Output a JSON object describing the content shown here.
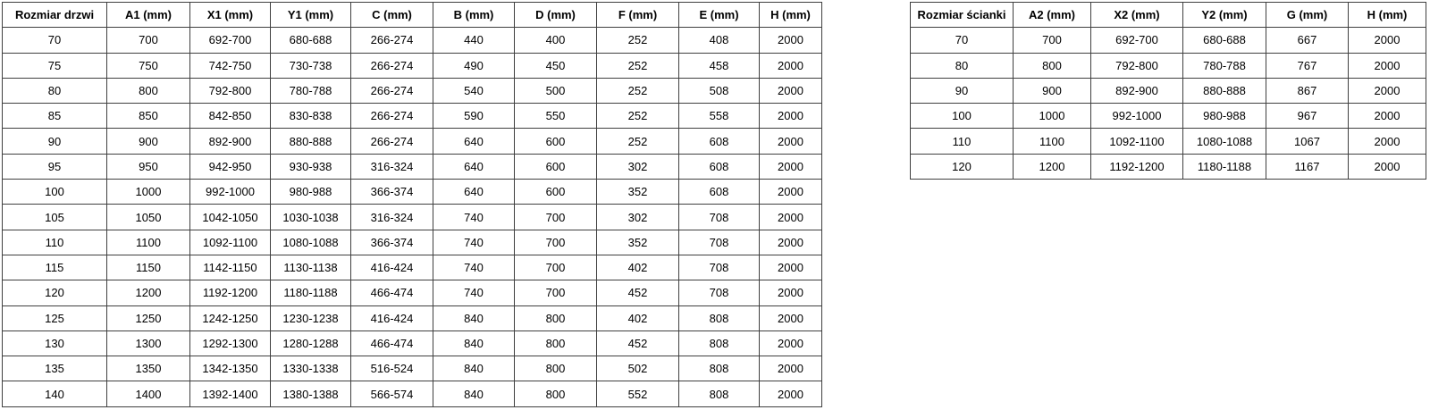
{
  "page": {
    "background": "#ffffff",
    "text_color": "#000000",
    "border_color": "#3f3f3f"
  },
  "door_table": {
    "headers": [
      "Rozmiar drzwi",
      "A1 (mm)",
      "X1 (mm)",
      "Y1 (mm)",
      "C (mm)",
      "B (mm)",
      "D (mm)",
      "F (mm)",
      "E (mm)",
      "H (mm)"
    ],
    "rows": [
      [
        "70",
        "700",
        "692-700",
        "680-688",
        "266-274",
        "440",
        "400",
        "252",
        "408",
        "2000"
      ],
      [
        "75",
        "750",
        "742-750",
        "730-738",
        "266-274",
        "490",
        "450",
        "252",
        "458",
        "2000"
      ],
      [
        "80",
        "800",
        "792-800",
        "780-788",
        "266-274",
        "540",
        "500",
        "252",
        "508",
        "2000"
      ],
      [
        "85",
        "850",
        "842-850",
        "830-838",
        "266-274",
        "590",
        "550",
        "252",
        "558",
        "2000"
      ],
      [
        "90",
        "900",
        "892-900",
        "880-888",
        "266-274",
        "640",
        "600",
        "252",
        "608",
        "2000"
      ],
      [
        "95",
        "950",
        "942-950",
        "930-938",
        "316-324",
        "640",
        "600",
        "302",
        "608",
        "2000"
      ],
      [
        "100",
        "1000",
        "992-1000",
        "980-988",
        "366-374",
        "640",
        "600",
        "352",
        "608",
        "2000"
      ],
      [
        "105",
        "1050",
        "1042-1050",
        "1030-1038",
        "316-324",
        "740",
        "700",
        "302",
        "708",
        "2000"
      ],
      [
        "110",
        "1100",
        "1092-1100",
        "1080-1088",
        "366-374",
        "740",
        "700",
        "352",
        "708",
        "2000"
      ],
      [
        "115",
        "1150",
        "1142-1150",
        "1130-1138",
        "416-424",
        "740",
        "700",
        "402",
        "708",
        "2000"
      ],
      [
        "120",
        "1200",
        "1192-1200",
        "1180-1188",
        "466-474",
        "740",
        "700",
        "452",
        "708",
        "2000"
      ],
      [
        "125",
        "1250",
        "1242-1250",
        "1230-1238",
        "416-424",
        "840",
        "800",
        "402",
        "808",
        "2000"
      ],
      [
        "130",
        "1300",
        "1292-1300",
        "1280-1288",
        "466-474",
        "840",
        "800",
        "452",
        "808",
        "2000"
      ],
      [
        "135",
        "1350",
        "1342-1350",
        "1330-1338",
        "516-524",
        "840",
        "800",
        "502",
        "808",
        "2000"
      ],
      [
        "140",
        "1400",
        "1392-1400",
        "1380-1388",
        "566-574",
        "840",
        "800",
        "552",
        "808",
        "2000"
      ]
    ]
  },
  "wall_table": {
    "headers": [
      "Rozmiar ścianki",
      "A2 (mm)",
      "X2 (mm)",
      "Y2 (mm)",
      "G (mm)",
      "H (mm)"
    ],
    "rows": [
      [
        "70",
        "700",
        "692-700",
        "680-688",
        "667",
        "2000"
      ],
      [
        "80",
        "800",
        "792-800",
        "780-788",
        "767",
        "2000"
      ],
      [
        "90",
        "900",
        "892-900",
        "880-888",
        "867",
        "2000"
      ],
      [
        "100",
        "1000",
        "992-1000",
        "980-988",
        "967",
        "2000"
      ],
      [
        "110",
        "1100",
        "1092-1100",
        "1080-1088",
        "1067",
        "2000"
      ],
      [
        "120",
        "1200",
        "1192-1200",
        "1180-1188",
        "1167",
        "2000"
      ]
    ]
  }
}
